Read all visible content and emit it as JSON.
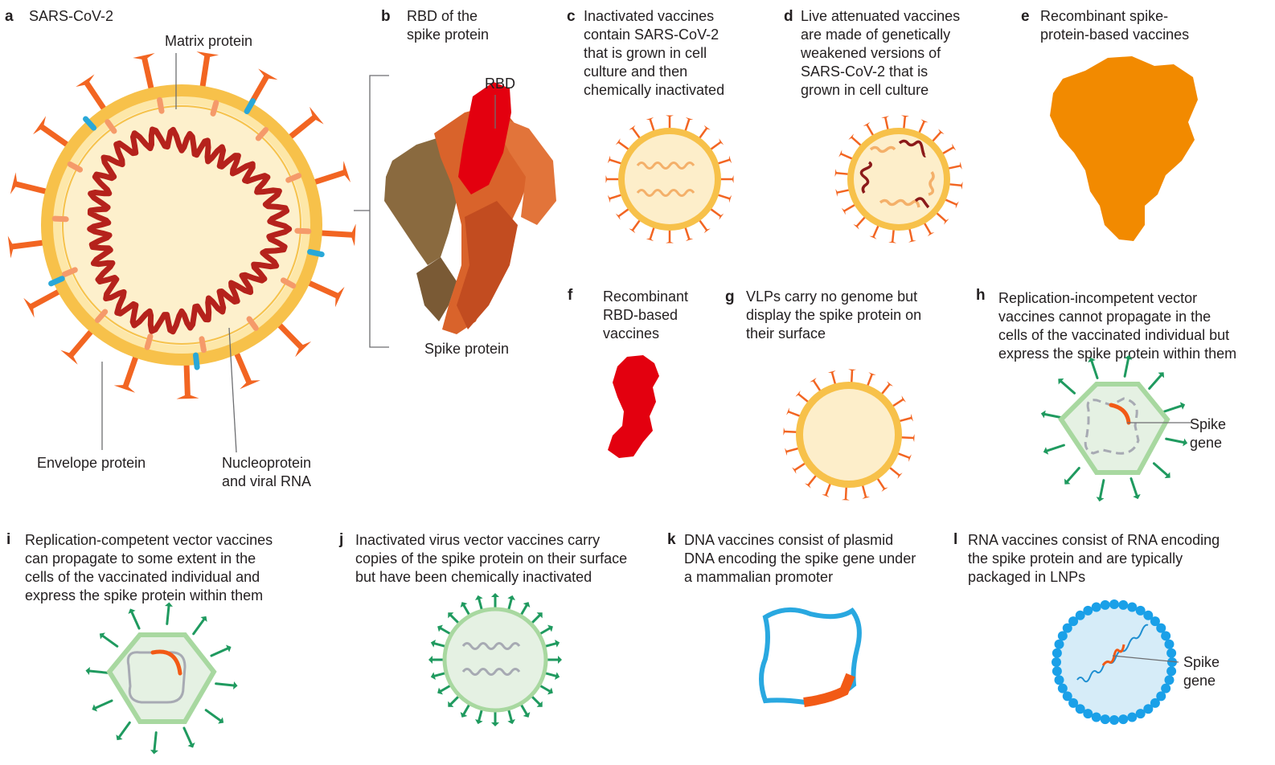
{
  "colors": {
    "spike": "#f26522",
    "envelope": "#f5c242",
    "envelope_fill": "#fdf0cc",
    "rna": "#b5221c",
    "matrix": "#f59a6a",
    "env_protein": "#29a8d8",
    "rbd": "#e3000f",
    "recombinant_spike": "#f28a00",
    "vector_green": "#1f9a5f",
    "vector_fill": "#e5f1e3",
    "plasmid": "#29a8e0",
    "lnp": "#1aa0e8",
    "lnp_fill": "#d6ecf8"
  },
  "panels": {
    "a": {
      "letter": "a",
      "text": "SARS-CoV-2"
    },
    "b": {
      "letter": "b",
      "text": "RBD of the\nspike protein"
    },
    "c": {
      "letter": "c",
      "text": "Inactivated vaccines\ncontain SARS-CoV-2\nthat is grown in cell\nculture and then\nchemically inactivated"
    },
    "d": {
      "letter": "d",
      "text": "Live attenuated vaccines\nare made of genetically\nweakened versions of\nSARS-CoV-2 that is\ngrown in cell culture"
    },
    "e": {
      "letter": "e",
      "text": "Recombinant spike-\nprotein-based vaccines"
    },
    "f": {
      "letter": "f",
      "text": "Recombinant\nRBD-based\nvaccines"
    },
    "g": {
      "letter": "g",
      "text": "VLPs carry no genome but\ndisplay the spike protein on\ntheir surface"
    },
    "h": {
      "letter": "h",
      "text": "Replication-incompetent vector\nvaccines cannot propagate in the\ncells of the vaccinated individual but\nexpress the spike protein within them"
    },
    "i": {
      "letter": "i",
      "text": "Replication-competent vector vaccines\ncan propagate to some extent in the\ncells of the vaccinated individual and\nexpress the spike protein within them"
    },
    "j": {
      "letter": "j",
      "text": "Inactivated virus vector vaccines carry\ncopies of the spike protein on their surface\nbut have been chemically inactivated"
    },
    "k": {
      "letter": "k",
      "text": "DNA vaccines consist of plasmid\nDNA encoding the spike gene under\na mammalian promoter"
    },
    "l": {
      "letter": "l",
      "text": "RNA vaccines consist of RNA encoding\nthe spike protein and are typically\npackaged in LNPs"
    }
  },
  "labels": {
    "matrix_protein": "Matrix protein",
    "envelope_protein": "Envelope protein",
    "nucleoprotein": "Nucleoprotein\nand viral RNA",
    "rbd": "RBD",
    "spike_protein": "Spike protein",
    "spike_gene_h": "Spike\ngene",
    "spike_gene_l": "Spike\ngene"
  }
}
